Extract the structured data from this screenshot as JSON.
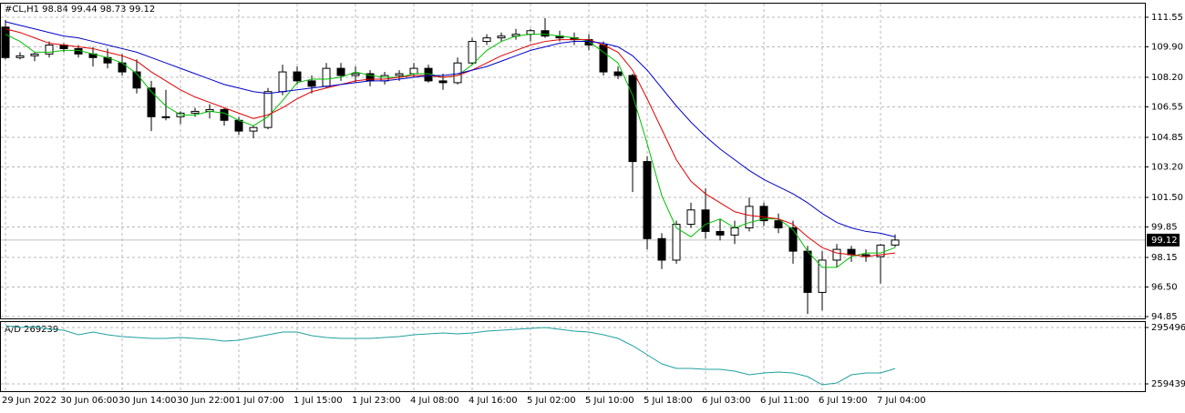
{
  "chart_data": [
    {
      "type": "candlestick",
      "title": "#CL,H1  98.84 99.44 98.73 99.12",
      "categories": [
        "29 Jun 2022",
        null,
        null,
        null,
        "30 Jun 06:00",
        null,
        null,
        null,
        "30 Jun 14:00",
        null,
        null,
        null,
        "30 Jun 22:00",
        null,
        null,
        null,
        "1 Jul 07:00",
        null,
        null,
        null,
        "1 Jul 15:00",
        null,
        null,
        null,
        "1 Jul 23:00",
        null,
        null,
        null,
        "4 Jul 08:00",
        null,
        null,
        null,
        "4 Jul 16:00",
        null,
        null,
        null,
        "5 Jul 02:00",
        null,
        null,
        null,
        "5 Jul 10:00",
        null,
        null,
        null,
        "5 Jul 18:00",
        null,
        null,
        null,
        "6 Jul 03:00",
        null,
        null,
        null,
        "6 Jul 11:00",
        null,
        null,
        null,
        "6 Jul 19:00",
        null,
        null,
        null,
        "7 Jul 04:00",
        null
      ],
      "open": [
        111.0,
        109.3,
        109.4,
        109.5,
        110.0,
        109.8,
        109.5,
        109.3,
        109.0,
        108.5,
        107.6,
        106.0,
        106.0,
        106.2,
        106.3,
        106.4,
        105.8,
        105.2,
        105.4,
        107.4,
        108.5,
        108.0,
        107.7,
        108.7,
        108.3,
        108.4,
        108.0,
        108.3,
        108.4,
        108.7,
        108.0,
        107.9,
        109.0,
        110.2,
        110.4,
        110.5,
        110.6,
        110.8,
        110.5,
        110.4,
        110.3,
        110.0,
        108.5,
        108.3,
        103.5,
        99.2,
        98.0,
        100.0,
        100.8,
        99.6,
        99.4,
        99.8,
        101.0,
        100.2,
        99.8,
        98.5,
        96.2,
        98.0,
        98.6,
        98.3,
        98.2,
        98.84
      ],
      "high": [
        111.4,
        109.6,
        109.6,
        110.2,
        110.1,
        110.0,
        109.9,
        109.8,
        109.5,
        109.2,
        108.0,
        107.5,
        106.3,
        106.5,
        106.7,
        106.5,
        106.0,
        105.5,
        107.6,
        108.9,
        108.8,
        108.3,
        109.0,
        109.0,
        108.8,
        108.6,
        108.5,
        108.6,
        109.0,
        108.9,
        108.4,
        109.3,
        110.4,
        110.6,
        110.7,
        110.9,
        110.9,
        111.5,
        110.8,
        110.7,
        110.6,
        110.2,
        108.8,
        108.4,
        103.8,
        99.5,
        100.2,
        101.2,
        102.0,
        100.3,
        100.2,
        101.5,
        101.2,
        100.6,
        100.2,
        98.8,
        98.5,
        98.9,
        98.8,
        98.6,
        98.9,
        99.44
      ],
      "low": [
        109.2,
        109.2,
        109.1,
        109.3,
        109.6,
        109.3,
        108.8,
        108.7,
        108.3,
        107.3,
        105.2,
        105.8,
        105.6,
        106.0,
        105.9,
        105.5,
        105.0,
        104.8,
        105.3,
        107.2,
        107.8,
        107.3,
        107.6,
        108.0,
        107.9,
        107.7,
        107.8,
        108.0,
        108.2,
        107.9,
        107.5,
        107.8,
        108.9,
        110.0,
        110.2,
        110.3,
        110.2,
        110.4,
        110.2,
        110.0,
        109.7,
        108.3,
        108.1,
        101.8,
        98.6,
        97.5,
        97.8,
        99.8,
        99.2,
        99.1,
        98.9,
        99.6,
        99.9,
        99.5,
        97.8,
        95.0,
        95.2,
        97.6,
        97.9,
        97.9,
        96.7,
        98.73
      ],
      "close": [
        109.3,
        109.4,
        109.5,
        110.0,
        109.8,
        109.5,
        109.3,
        109.0,
        108.5,
        107.6,
        106.0,
        106.0,
        106.2,
        106.3,
        106.4,
        105.8,
        105.2,
        105.4,
        107.4,
        108.5,
        108.0,
        107.7,
        108.7,
        108.3,
        108.4,
        108.0,
        108.3,
        108.4,
        108.7,
        108.0,
        107.9,
        109.0,
        110.2,
        110.4,
        110.5,
        110.6,
        110.8,
        110.5,
        110.4,
        110.3,
        110.0,
        108.5,
        108.3,
        103.5,
        99.2,
        98.0,
        100.0,
        100.8,
        99.6,
        99.4,
        99.8,
        101.0,
        100.2,
        99.8,
        98.5,
        96.2,
        98.0,
        98.6,
        98.3,
        98.2,
        98.84,
        99.12
      ],
      "series": [
        {
          "color": "#00c000",
          "values": [
            110.6,
            110.2,
            109.6,
            109.6,
            109.7,
            109.7,
            109.5,
            109.3,
            109.0,
            108.4,
            107.4,
            106.6,
            106.1,
            106.1,
            106.3,
            106.2,
            105.8,
            105.5,
            106.0,
            106.9,
            107.9,
            108.1,
            108.1,
            108.2,
            108.5,
            108.3,
            108.2,
            108.2,
            108.4,
            108.4,
            108.2,
            108.3,
            108.9,
            109.7,
            110.2,
            110.5,
            110.6,
            110.6,
            110.5,
            110.4,
            110.2,
            109.6,
            109.0,
            107.2,
            104.5,
            101.6,
            99.8,
            99.3,
            100.0,
            100.3,
            99.8,
            100.1,
            100.3,
            100.3,
            99.7,
            98.5,
            97.6,
            97.6,
            98.2,
            98.4,
            98.4,
            98.7
          ]
        },
        {
          "color": "#e00000",
          "values": [
            110.9,
            110.7,
            110.4,
            110.1,
            110.0,
            109.9,
            109.8,
            109.6,
            109.4,
            109.1,
            108.5,
            108.0,
            107.5,
            107.1,
            106.8,
            106.5,
            106.2,
            105.9,
            106.1,
            106.5,
            107.0,
            107.4,
            107.6,
            107.8,
            108.0,
            108.1,
            108.1,
            108.2,
            108.3,
            108.3,
            108.2,
            108.3,
            108.6,
            109.0,
            109.4,
            109.7,
            110.0,
            110.2,
            110.3,
            110.3,
            110.3,
            110.0,
            109.6,
            108.6,
            107.0,
            105.3,
            103.6,
            102.4,
            101.7,
            101.2,
            100.7,
            100.5,
            100.4,
            100.3,
            100.0,
            99.3,
            98.7,
            98.4,
            98.3,
            98.2,
            98.3,
            98.4
          ]
        },
        {
          "color": "#0000c8",
          "values": [
            111.3,
            111.1,
            110.9,
            110.7,
            110.5,
            110.4,
            110.2,
            110.0,
            109.8,
            109.6,
            109.3,
            109.0,
            108.7,
            108.4,
            108.1,
            107.8,
            107.6,
            107.4,
            107.3,
            107.4,
            107.5,
            107.6,
            107.7,
            107.8,
            107.9,
            108.0,
            108.0,
            108.1,
            108.2,
            108.3,
            108.3,
            108.4,
            108.6,
            108.8,
            109.1,
            109.4,
            109.7,
            109.9,
            110.1,
            110.2,
            110.2,
            110.1,
            109.9,
            109.4,
            108.6,
            107.6,
            106.6,
            105.7,
            104.9,
            104.2,
            103.6,
            103.0,
            102.5,
            102.1,
            101.7,
            101.2,
            100.6,
            100.1,
            99.8,
            99.6,
            99.5,
            99.3
          ]
        }
      ],
      "current_price": 99.12,
      "ylim": [
        94.75,
        112.36
      ],
      "yticks": [
        111.55,
        {
          "value": 109.9,
          "label": "109.90"
        },
        {
          "value": 108.2,
          "label": "108.20"
        },
        106.55,
        104.85,
        {
          "value": 103.2,
          "label": "103.20"
        },
        {
          "value": 101.5,
          "label": "101.50"
        },
        99.85,
        98.15,
        {
          "value": 96.5,
          "label": "96.50"
        },
        94.85
      ],
      "grid": true
    },
    {
      "type": "line",
      "title": "A/D 269239",
      "color": "#20a0a0",
      "values": [
        296659,
        295496,
        296078,
        294333,
        293751,
        290843,
        292588,
        290843,
        289680,
        289098,
        288517,
        288517,
        289098,
        288517,
        287935,
        286772,
        287354,
        289098,
        290843,
        292588,
        292588,
        290262,
        289098,
        288517,
        288517,
        288517,
        289098,
        289680,
        290843,
        291425,
        292006,
        291425,
        292006,
        293170,
        293751,
        294333,
        294914,
        295496,
        294333,
        293170,
        292588,
        290843,
        288517,
        283864,
        278048,
        272232,
        269324,
        269324,
        268742,
        268742,
        267579,
        265253,
        266416,
        266998,
        266416,
        264089,
        258855,
        260018,
        265253,
        266416,
        266416,
        269239
      ],
      "ylim": [
        254786,
        299567
      ],
      "yticks": [
        295496,
        259439
      ],
      "grid": true
    }
  ]
}
